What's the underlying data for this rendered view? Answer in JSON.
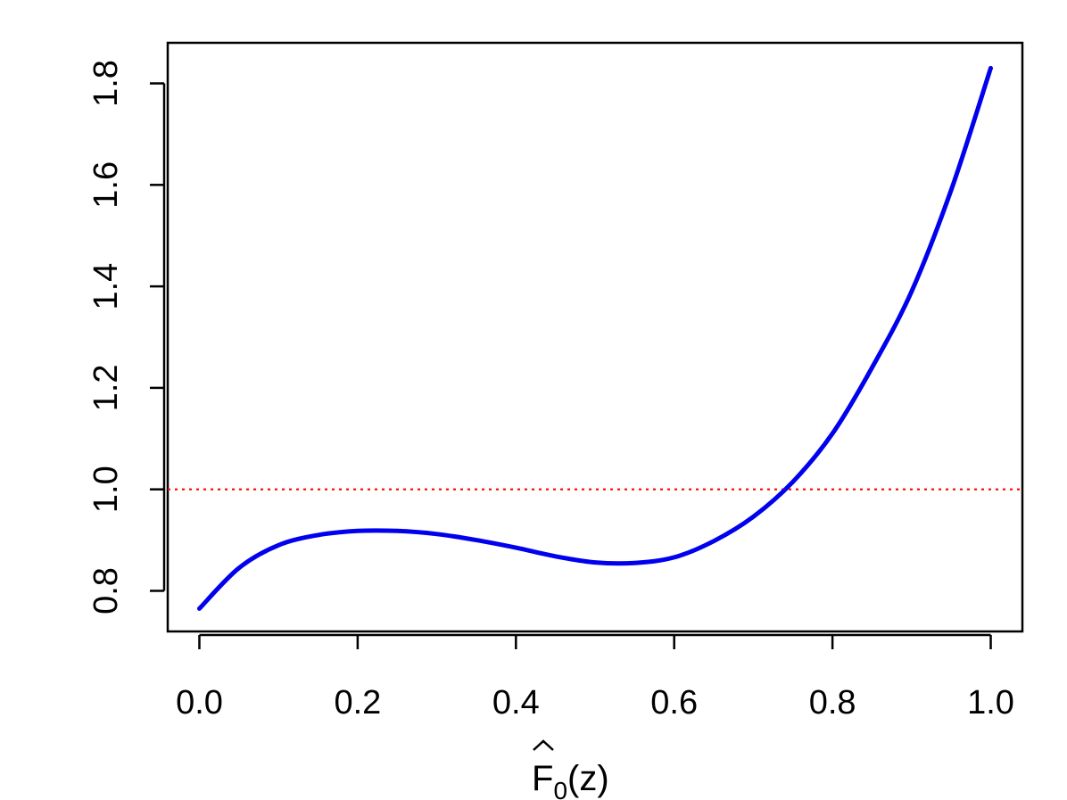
{
  "chart_data": {
    "type": "line",
    "xlabel": {
      "base": "F",
      "subscript": "0",
      "suffix": "(z)",
      "accent": "hat"
    },
    "ylabel": "",
    "xlim": [
      -0.04,
      1.04
    ],
    "ylim": [
      0.72,
      1.88
    ],
    "xticks": [
      {
        "value": 0.0,
        "label": "0.0"
      },
      {
        "value": 0.2,
        "label": "0.2"
      },
      {
        "value": 0.4,
        "label": "0.4"
      },
      {
        "value": 0.6,
        "label": "0.6"
      },
      {
        "value": 0.8,
        "label": "0.8"
      },
      {
        "value": 1.0,
        "label": "1.0"
      }
    ],
    "yticks": [
      {
        "value": 0.8,
        "label": "0.8"
      },
      {
        "value": 1.0,
        "label": "1.0"
      },
      {
        "value": 1.2,
        "label": "1.2"
      },
      {
        "value": 1.4,
        "label": "1.4"
      },
      {
        "value": 1.6,
        "label": "1.6"
      },
      {
        "value": 1.8,
        "label": "1.8"
      }
    ],
    "grid": false,
    "series": [
      {
        "color": "#0000ee",
        "style": "solid",
        "x": [
          0.0,
          0.05,
          0.1,
          0.15,
          0.2,
          0.25,
          0.3,
          0.35,
          0.4,
          0.45,
          0.5,
          0.55,
          0.6,
          0.65,
          0.7,
          0.75,
          0.8,
          0.85,
          0.9,
          0.95,
          1.0
        ],
        "y": [
          0.765,
          0.845,
          0.89,
          0.91,
          0.918,
          0.918,
          0.912,
          0.9,
          0.885,
          0.868,
          0.856,
          0.855,
          0.866,
          0.898,
          0.946,
          1.015,
          1.11,
          1.24,
          1.39,
          1.59,
          1.83
        ]
      }
    ],
    "reference_lines": [
      {
        "orientation": "horizontal",
        "y": 1.0,
        "color": "#ff0000",
        "style": "dotted"
      }
    ]
  }
}
